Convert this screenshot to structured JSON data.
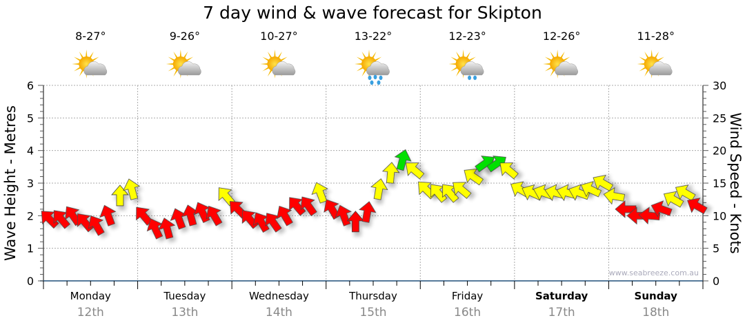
{
  "chart_data": {
    "type": "line",
    "title": "7 day wind & wave forecast for Skipton",
    "ylabel_left": "Wave Height - Metres",
    "ylabel_right": "Wind Speed - Knots",
    "ylim_left": [
      0,
      6
    ],
    "ylim_right": [
      0,
      30
    ],
    "yticks_left": [
      "0",
      "1",
      "2",
      "3",
      "4",
      "5",
      "6"
    ],
    "yticks_right": [
      "0",
      "5",
      "10",
      "15",
      "20",
      "25",
      "30"
    ],
    "grid": true,
    "watermark": "www.seabreeze.com.au",
    "days": [
      {
        "name": "Monday",
        "date": "12th",
        "temp": "8-27°",
        "icon": "partly-cloudy-icon",
        "bold": false
      },
      {
        "name": "Tuesday",
        "date": "13th",
        "temp": "9-26°",
        "icon": "partly-cloudy-icon",
        "bold": false
      },
      {
        "name": "Wednesday",
        "date": "14th",
        "temp": "10-27°",
        "icon": "partly-cloudy-icon",
        "bold": false
      },
      {
        "name": "Thursday",
        "date": "15th",
        "temp": "13-22°",
        "icon": "showers-icon",
        "bold": false
      },
      {
        "name": "Friday",
        "date": "16th",
        "temp": "12-23°",
        "icon": "light-showers-icon",
        "bold": false
      },
      {
        "name": "Saturday",
        "date": "17th",
        "temp": "12-26°",
        "icon": "partly-cloudy-icon",
        "bold": true
      },
      {
        "name": "Sunday",
        "date": "18th",
        "temp": "11-28°",
        "icon": "partly-cloudy-icon",
        "bold": true
      }
    ],
    "wind_interval_hours": 3,
    "wind_knots": [
      9.5,
      9.5,
      10,
      9,
      8.5,
      10,
      13,
      14,
      10,
      8,
      8,
      9.5,
      10,
      10.5,
      10,
      13,
      11,
      9.5,
      9,
      9,
      10,
      11.5,
      11.5,
      13.5,
      11,
      10,
      9,
      10.5,
      14,
      16.5,
      18.5,
      17,
      14,
      13.5,
      13.5,
      14,
      16,
      18,
      18,
      17,
      14,
      13.5,
      13.5,
      13.5,
      13.5,
      13.5,
      14,
      15,
      13,
      11,
      10,
      10,
      11,
      12.5,
      13.5,
      11.5
    ],
    "wind_arrow_deg": [
      -45,
      -40,
      -35,
      -40,
      -30,
      -20,
      0,
      -15,
      -40,
      -25,
      -15,
      -20,
      -15,
      -25,
      -30,
      -40,
      -45,
      -40,
      -30,
      -35,
      -30,
      -40,
      -35,
      -20,
      -30,
      -20,
      0,
      10,
      10,
      5,
      15,
      -50,
      -45,
      -40,
      -40,
      -50,
      -55,
      55,
      55,
      -50,
      -60,
      -65,
      -70,
      -75,
      -75,
      -70,
      -65,
      -60,
      -80,
      -90,
      -90,
      -85,
      -70,
      -60,
      -60,
      -60
    ],
    "color_thresholds": {
      "yellow_from": 12,
      "green_from": 17.5
    },
    "colors": {
      "low": "#ff0000",
      "mid": "#ffff00",
      "high": "#00e000",
      "axis": "#1f4e79"
    }
  }
}
